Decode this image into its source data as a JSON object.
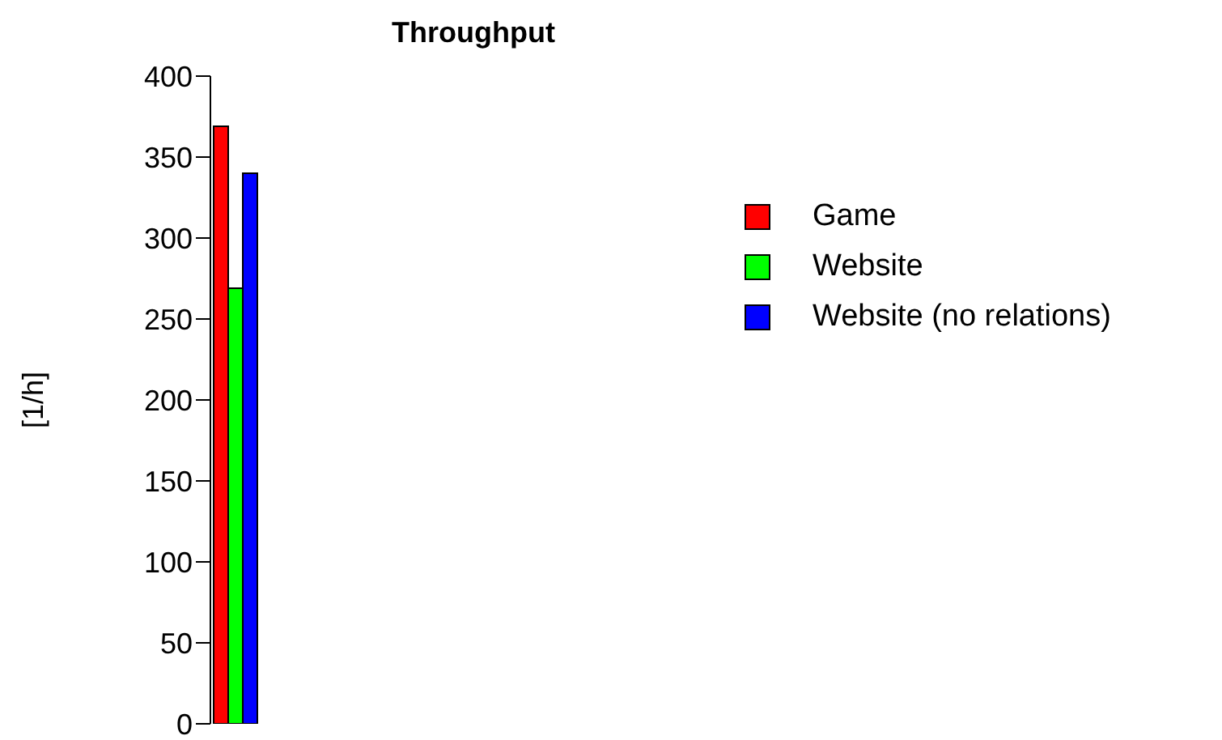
{
  "chart_data": {
    "type": "bar",
    "title": "Throughput",
    "ylabel": "[1/h]",
    "categories": [
      null
    ],
    "series": [
      {
        "name": "Game",
        "color": "#ff0000",
        "values": [
          369
        ]
      },
      {
        "name": "Website",
        "color": "#00ff00",
        "values": [
          269
        ]
      },
      {
        "name": "Website (no relations)",
        "color": "#0000ff",
        "values": [
          340
        ]
      }
    ],
    "ylim": [
      0,
      400
    ],
    "yticks": [
      0,
      50,
      100,
      150,
      200,
      250,
      300,
      350,
      400
    ],
    "grid": false,
    "legend": "right"
  }
}
